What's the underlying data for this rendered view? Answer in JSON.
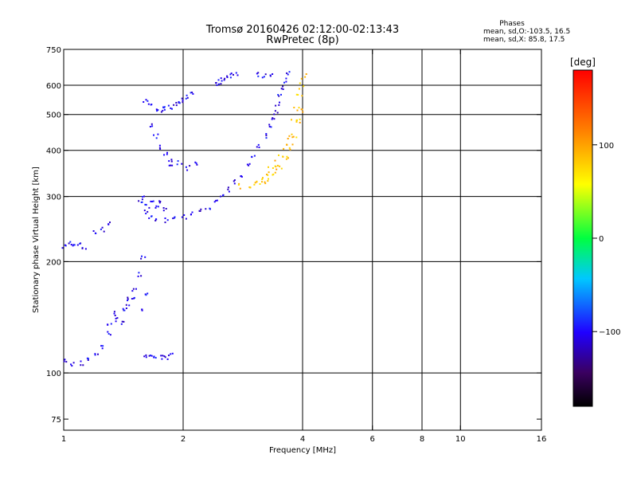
{
  "chart_data": {
    "type": "scatter",
    "title": "Tromsø 20160426 02:12:00-02:13:43",
    "subtitle": "RwPretec (8p)",
    "xlabel": "Frequency [MHz]",
    "ylabel": "Stationary phase Virtual Height [km]",
    "xscale": "log2",
    "yscale": "log",
    "xlim": [
      1,
      16
    ],
    "ylim": [
      70,
      750
    ],
    "xticks": [
      1,
      2,
      4,
      6,
      8,
      10,
      16
    ],
    "xtick_labels": [
      "1",
      "2",
      "4",
      "6",
      "8",
      "10",
      "16"
    ],
    "xgrid": [
      2,
      4,
      6,
      8,
      10
    ],
    "yticks": [
      75,
      100,
      200,
      300,
      400,
      500,
      600,
      750
    ],
    "ytick_labels": [
      "75",
      "100",
      "200",
      "300",
      "400",
      "500",
      "600",
      "750"
    ],
    "ygrid": [
      100,
      200,
      300,
      400,
      500,
      600
    ],
    "grid": true,
    "phase_info": {
      "title": "Phases",
      "line1": "mean, sd,O:-103.5, 16.5",
      "line2": "mean, sd,X:  85.8, 17.5"
    },
    "colorbar": {
      "label": "[deg]",
      "range": [
        -180,
        180
      ],
      "ticks": [
        100,
        0,
        -100
      ],
      "tick_labels": [
        "100",
        "0",
        "−100"
      ]
    },
    "series": [
      {
        "name": "O",
        "phase_mean": -103.5,
        "phase_sd": 16.5,
        "traces": [
          {
            "f": [
              1.0,
              1.05,
              1.1,
              1.15,
              1.2,
              1.25,
              1.3,
              1.35,
              1.4,
              1.45,
              1.5,
              1.55,
              1.58
            ],
            "h": [
              108,
              106,
              107,
              109,
              112,
              118,
              128,
              140,
              150,
              160,
              170,
              185,
              205
            ]
          },
          {
            "f": [
              1.3,
              1.35,
              1.4,
              1.45,
              1.5,
              1.55,
              1.6
            ],
            "h": [
              135,
              145,
              138,
              152,
              160,
              150,
              165
            ]
          },
          {
            "f": [
              1.0,
              1.03,
              1.06,
              1.09,
              1.12
            ],
            "h": [
              222,
              225,
              220,
              224,
              218
            ]
          },
          {
            "f": [
              1.2,
              1.25,
              1.3
            ],
            "h": [
              240,
              245,
              255
            ]
          },
          {
            "f": [
              1.55,
              1.6,
              1.65,
              1.7,
              1.8,
              1.9,
              2.0,
              2.1,
              2.2,
              2.3,
              2.4,
              2.5,
              2.6,
              2.7,
              2.8,
              2.9,
              3.0,
              3.1,
              3.2,
              3.3,
              3.35,
              3.4,
              3.45,
              3.5,
              3.55,
              3.6,
              3.65
            ],
            "h": [
              290,
              275,
              265,
              262,
              260,
              262,
              265,
              270,
              275,
              282,
              290,
              300,
              315,
              330,
              345,
              365,
              385,
              410,
              440,
              470,
              490,
              510,
              535,
              560,
              590,
              620,
              650
            ]
          },
          {
            "f": [
              1.58,
              1.62,
              1.66,
              1.7,
              1.75,
              1.8
            ],
            "h": [
              300,
              285,
              295,
              280,
              290,
              278
            ]
          },
          {
            "f": [
              1.6,
              1.65,
              1.7,
              1.75,
              1.8,
              1.85,
              1.9,
              1.95,
              2.0,
              2.05,
              2.1
            ],
            "h": [
              545,
              530,
              520,
              518,
              520,
              525,
              535,
              540,
              550,
              560,
              570
            ]
          },
          {
            "f": [
              1.65,
              1.7,
              1.75,
              1.8,
              1.85
            ],
            "h": [
              470,
              440,
              410,
              395,
              380
            ]
          },
          {
            "f": [
              1.85,
              1.95,
              2.05,
              2.15
            ],
            "h": [
              365,
              372,
              360,
              368
            ]
          },
          {
            "f": [
              1.6,
              1.65,
              1.7,
              1.75,
              1.8,
              1.85
            ],
            "h": [
              111,
              111,
              112,
              111,
              111,
              112
            ]
          },
          {
            "f": [
              2.4,
              2.45,
              2.5,
              2.55,
              2.6,
              2.7
            ],
            "h": [
              605,
              615,
              625,
              635,
              640,
              645
            ]
          },
          {
            "f": [
              3.1,
              3.2,
              3.3
            ],
            "h": [
              645,
              640,
              648
            ]
          }
        ]
      },
      {
        "name": "X",
        "phase_mean": 85.8,
        "phase_sd": 17.5,
        "traces": [
          {
            "f": [
              2.8,
              2.9,
              3.0,
              3.1,
              3.2,
              3.3,
              3.4,
              3.5,
              3.6,
              3.7,
              3.8,
              3.85,
              3.9,
              3.95,
              4.0
            ],
            "h": [
              320,
              322,
              325,
              330,
              340,
              355,
              370,
              390,
              410,
              440,
              480,
              520,
              560,
              600,
              640
            ]
          },
          {
            "f": [
              3.2,
              3.3,
              3.4,
              3.5,
              3.6,
              3.7,
              3.8,
              3.9,
              3.95
            ],
            "h": [
              330,
              340,
              350,
              365,
              385,
              410,
              440,
              480,
              520
            ]
          }
        ]
      }
    ]
  }
}
